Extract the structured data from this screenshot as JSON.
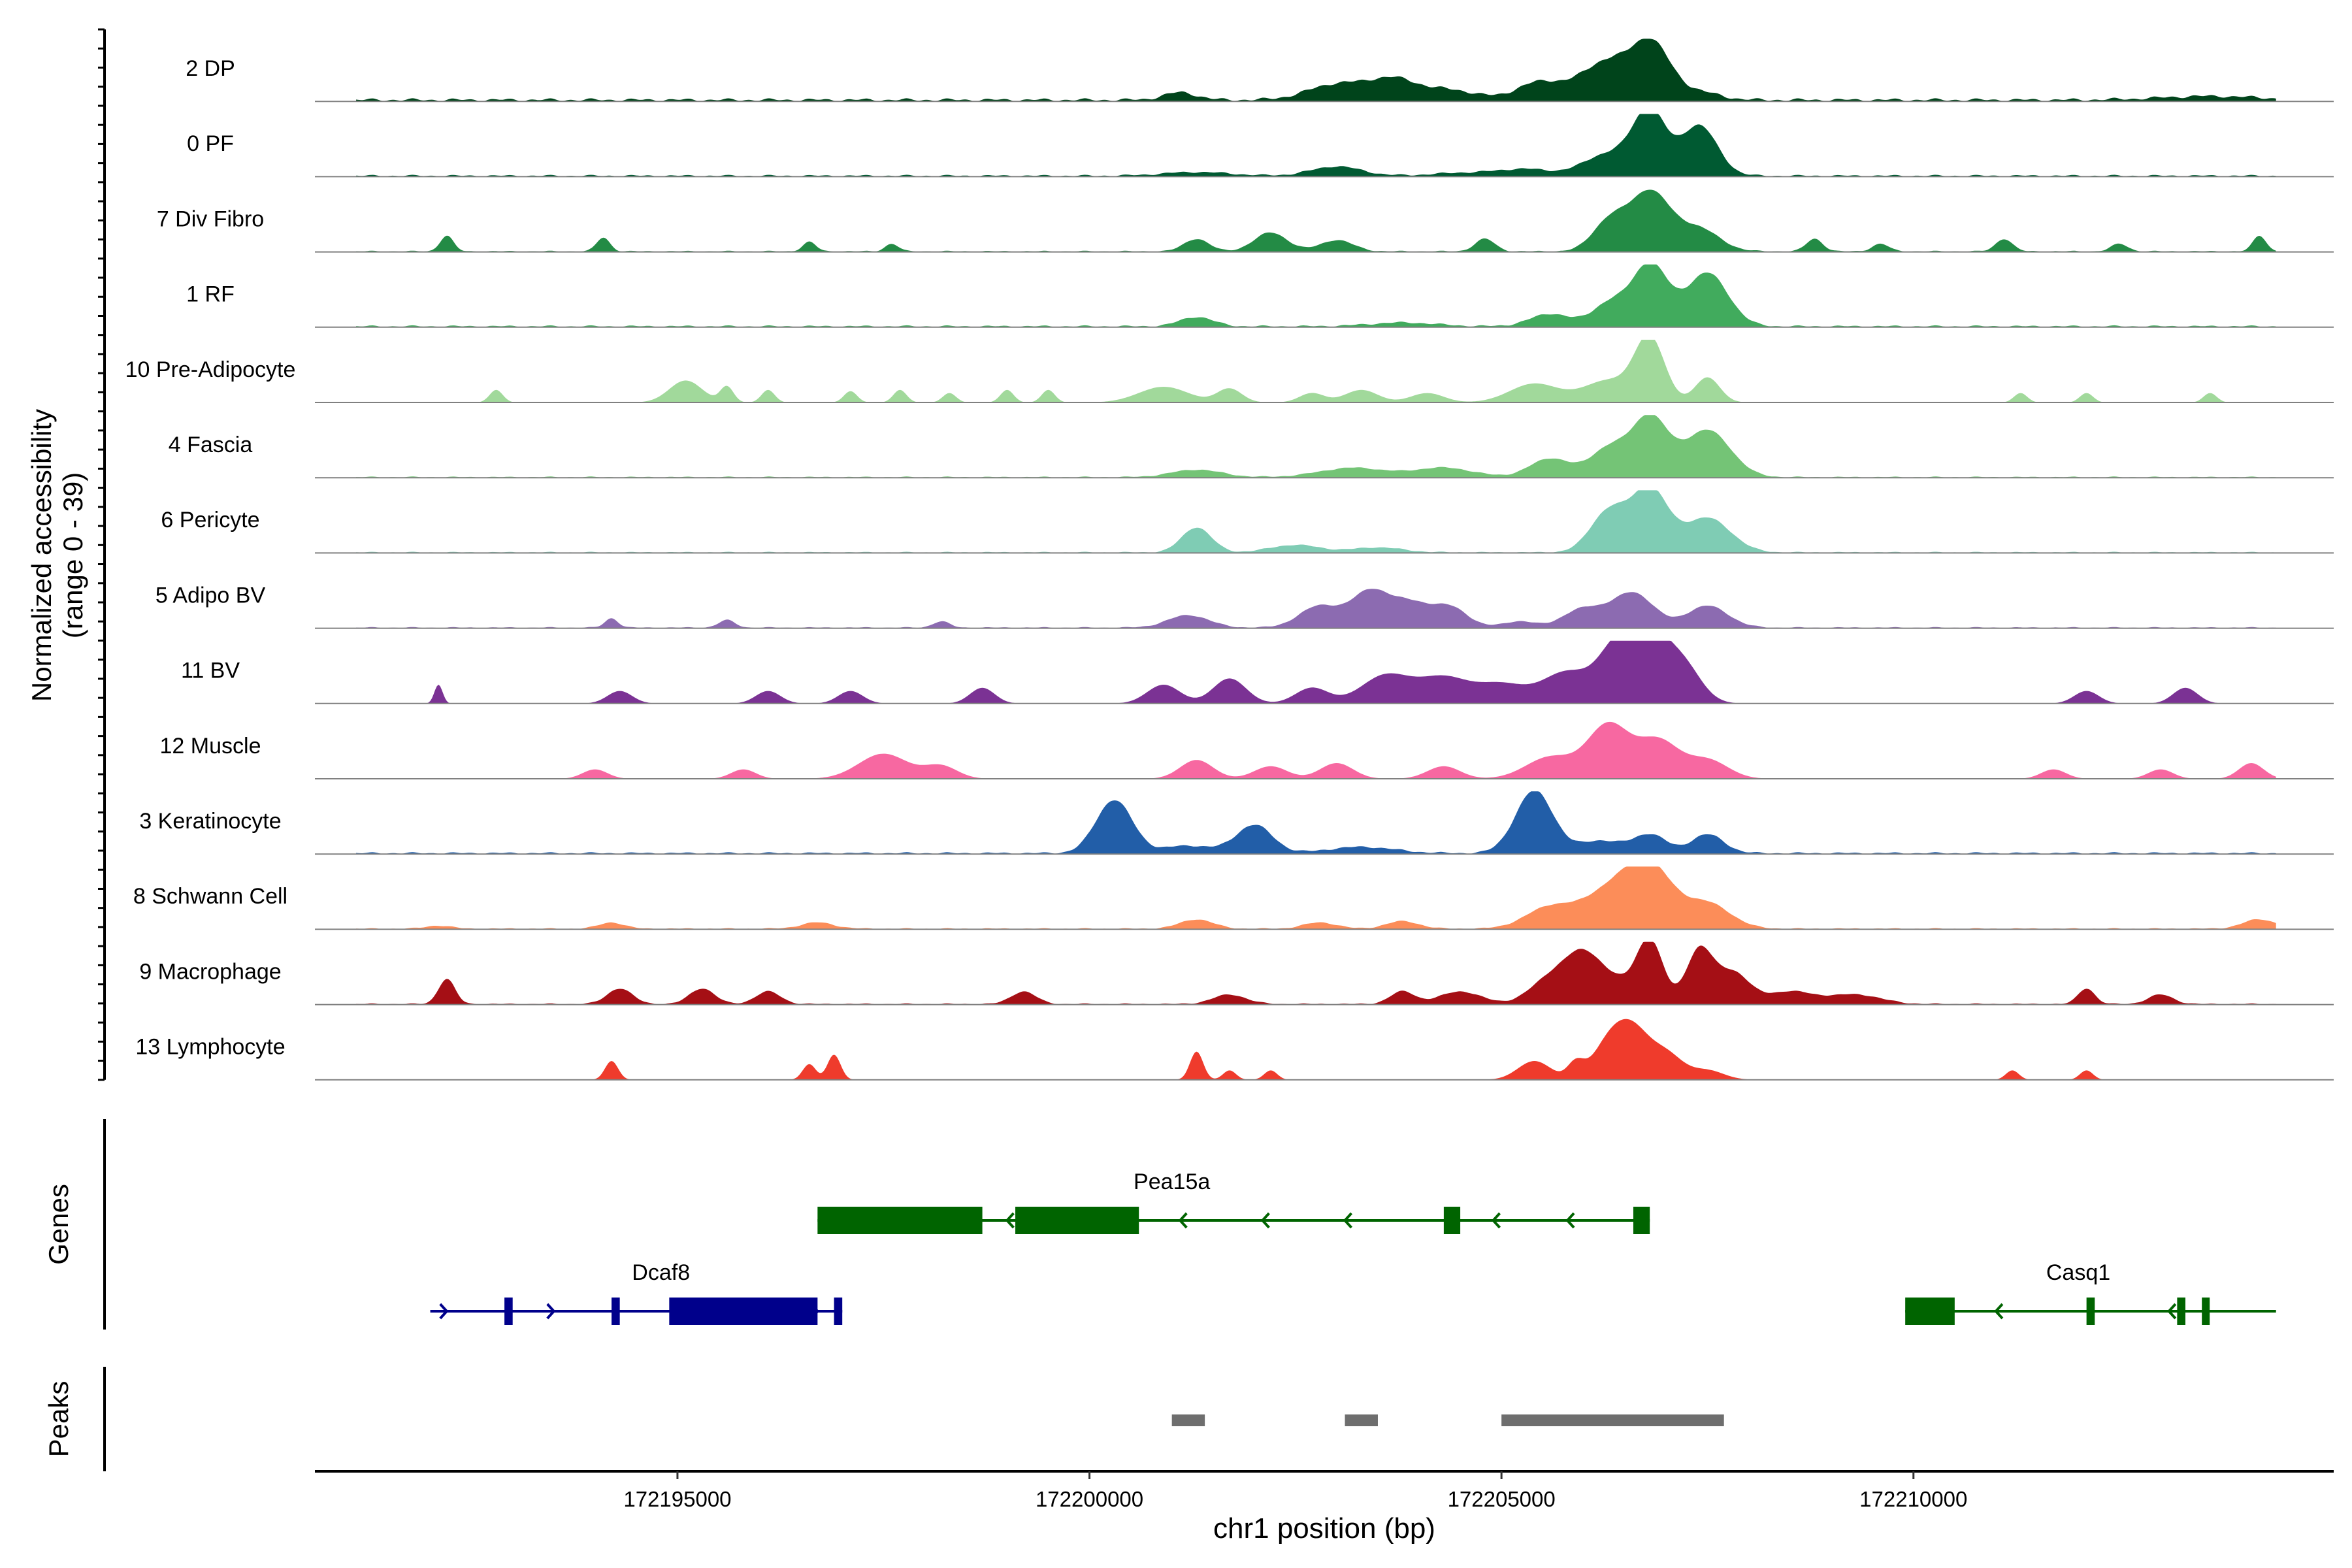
{
  "chart_data": {
    "type": "area",
    "title": "",
    "ylabel_line1": "Normalized accessibility",
    "ylabel_line2": "(range 0 - 39)",
    "y_range": [
      0,
      39
    ],
    "xlabel": "chr1 position (bp)",
    "xlim": [
      172190600,
      172215100
    ],
    "x_ticks": [
      172195000,
      172200000,
      172205000,
      172210000
    ],
    "x_tick_labels": [
      "172195000",
      "172200000",
      "172205000",
      "172210000"
    ],
    "track_range": [
      172191100,
      172214400
    ],
    "tracks": [
      {
        "label": "2 DP",
        "color": "#00441b",
        "peaks": [
          [
            172201100,
            0.12,
            200
          ],
          [
            172203000,
            0.25,
            350
          ],
          [
            172203700,
            0.32,
            300
          ],
          [
            172204400,
            0.15,
            300
          ],
          [
            172205500,
            0.3,
            300
          ],
          [
            172206000,
            0.18,
            200
          ],
          [
            172206300,
            0.5,
            220
          ],
          [
            172206800,
            0.95,
            240
          ],
          [
            172207400,
            0.12,
            250
          ],
          [
            172213600,
            0.06,
            600
          ]
        ],
        "base": 0.05
      },
      {
        "label": "0 PF",
        "color": "#005a32",
        "peaks": [
          [
            172201300,
            0.06,
            400
          ],
          [
            172203000,
            0.15,
            300
          ],
          [
            172205300,
            0.1,
            300
          ],
          [
            172206300,
            0.35,
            300
          ],
          [
            172206800,
            1.0,
            200
          ],
          [
            172207400,
            0.8,
            220
          ],
          [
            172204600,
            0.05,
            400
          ]
        ],
        "base": 0.03
      },
      {
        "label": "7 Div Fibro",
        "color": "#238b45",
        "peaks": [
          [
            172192200,
            0.25,
            80
          ],
          [
            172194100,
            0.22,
            80
          ],
          [
            172196600,
            0.15,
            80
          ],
          [
            172197600,
            0.12,
            80
          ],
          [
            172201300,
            0.2,
            150
          ],
          [
            172202200,
            0.3,
            200
          ],
          [
            172203000,
            0.18,
            200
          ],
          [
            172204800,
            0.2,
            120
          ],
          [
            172206300,
            0.45,
            200
          ],
          [
            172206800,
            0.95,
            250
          ],
          [
            172207400,
            0.35,
            250
          ],
          [
            172208800,
            0.2,
            100
          ],
          [
            172209600,
            0.12,
            100
          ],
          [
            172211100,
            0.2,
            100
          ],
          [
            172212500,
            0.12,
            100
          ],
          [
            172214200,
            0.25,
            80
          ]
        ],
        "base": 0.02
      },
      {
        "label": "1 RF",
        "color": "#41ab5d",
        "peaks": [
          [
            172201300,
            0.15,
            200
          ],
          [
            172203800,
            0.06,
            400
          ],
          [
            172205600,
            0.2,
            250
          ],
          [
            172206300,
            0.35,
            200
          ],
          [
            172206800,
            1.0,
            220
          ],
          [
            172207500,
            0.85,
            250
          ]
        ],
        "base": 0.03
      },
      {
        "label": "10 Pre-Adipocyte",
        "color": "#a1d99b",
        "peaks": [
          [
            172192800,
            0.2,
            80
          ],
          [
            172195100,
            0.35,
            200
          ],
          [
            172195600,
            0.25,
            80
          ],
          [
            172196100,
            0.2,
            80
          ],
          [
            172197100,
            0.18,
            80
          ],
          [
            172197700,
            0.2,
            80
          ],
          [
            172198300,
            0.15,
            80
          ],
          [
            172199000,
            0.2,
            80
          ],
          [
            172199500,
            0.2,
            80
          ],
          [
            172200900,
            0.25,
            300
          ],
          [
            172201700,
            0.22,
            150
          ],
          [
            172202700,
            0.15,
            150
          ],
          [
            172203300,
            0.2,
            200
          ],
          [
            172204100,
            0.15,
            200
          ],
          [
            172205400,
            0.3,
            300
          ],
          [
            172206300,
            0.35,
            300
          ],
          [
            172206800,
            1.0,
            180
          ],
          [
            172207500,
            0.4,
            150
          ],
          [
            172211300,
            0.15,
            80
          ],
          [
            172212100,
            0.15,
            80
          ],
          [
            172213600,
            0.15,
            80
          ]
        ],
        "base": 0.0
      },
      {
        "label": "4 Fascia",
        "color": "#74c476",
        "peaks": [
          [
            172201300,
            0.12,
            300
          ],
          [
            172203200,
            0.15,
            400
          ],
          [
            172204300,
            0.15,
            350
          ],
          [
            172205600,
            0.3,
            250
          ],
          [
            172206300,
            0.45,
            220
          ],
          [
            172206800,
            0.95,
            220
          ],
          [
            172207500,
            0.75,
            280
          ]
        ],
        "base": 0.02
      },
      {
        "label": "6 Pericyte",
        "color": "#7fccb4",
        "peaks": [
          [
            172201300,
            0.4,
            180
          ],
          [
            172202500,
            0.12,
            300
          ],
          [
            172203500,
            0.08,
            300
          ],
          [
            172206300,
            0.65,
            220
          ],
          [
            172206800,
            1.0,
            220
          ],
          [
            172207500,
            0.55,
            280
          ]
        ],
        "base": 0.02
      },
      {
        "label": "5 Adipo BV",
        "color": "#8c6bb1",
        "peaks": [
          [
            172194200,
            0.15,
            80
          ],
          [
            172195600,
            0.12,
            100
          ],
          [
            172198200,
            0.1,
            100
          ],
          [
            172201200,
            0.2,
            250
          ],
          [
            172202800,
            0.35,
            250
          ],
          [
            172203400,
            0.55,
            220
          ],
          [
            172203900,
            0.4,
            250
          ],
          [
            172204400,
            0.3,
            200
          ],
          [
            172205200,
            0.1,
            200
          ],
          [
            172206000,
            0.3,
            250
          ],
          [
            172206600,
            0.55,
            250
          ],
          [
            172207500,
            0.35,
            250
          ]
        ],
        "base": 0.02
      },
      {
        "label": "11 BV",
        "color": "#7b3294",
        "peaks": [
          [
            172192100,
            0.3,
            50
          ],
          [
            172194300,
            0.2,
            150
          ],
          [
            172196100,
            0.2,
            150
          ],
          [
            172197100,
            0.2,
            150
          ],
          [
            172198700,
            0.25,
            150
          ],
          [
            172200900,
            0.3,
            200
          ],
          [
            172201700,
            0.4,
            200
          ],
          [
            172202700,
            0.25,
            200
          ],
          [
            172203600,
            0.45,
            300
          ],
          [
            172204300,
            0.4,
            300
          ],
          [
            172205000,
            0.3,
            300
          ],
          [
            172205800,
            0.5,
            300
          ],
          [
            172206400,
            0.85,
            220
          ],
          [
            172206800,
            1.0,
            220
          ],
          [
            172207200,
            0.6,
            220
          ],
          [
            172212100,
            0.2,
            150
          ],
          [
            172213300,
            0.25,
            150
          ]
        ],
        "base": 0.0
      },
      {
        "label": "12 Muscle",
        "color": "#f768a1",
        "peaks": [
          [
            172194000,
            0.15,
            150
          ],
          [
            172195800,
            0.15,
            150
          ],
          [
            172197500,
            0.4,
            300
          ],
          [
            172198200,
            0.2,
            200
          ],
          [
            172201300,
            0.3,
            200
          ],
          [
            172202200,
            0.2,
            200
          ],
          [
            172203000,
            0.25,
            200
          ],
          [
            172204300,
            0.2,
            200
          ],
          [
            172205600,
            0.35,
            300
          ],
          [
            172206300,
            0.85,
            250
          ],
          [
            172206900,
            0.6,
            250
          ],
          [
            172207500,
            0.3,
            250
          ],
          [
            172211700,
            0.15,
            150
          ],
          [
            172213000,
            0.15,
            150
          ],
          [
            172214100,
            0.25,
            150
          ]
        ],
        "base": 0.0
      },
      {
        "label": "3 Keratinocyte",
        "color": "#225ea8",
        "peaks": [
          [
            172200300,
            0.85,
            220
          ],
          [
            172201200,
            0.12,
            300
          ],
          [
            172202000,
            0.45,
            220
          ],
          [
            172205400,
            1.0,
            230
          ],
          [
            172206200,
            0.2,
            250
          ],
          [
            172206800,
            0.3,
            200
          ],
          [
            172207500,
            0.3,
            200
          ],
          [
            172203300,
            0.1,
            400
          ]
        ],
        "base": 0.03
      },
      {
        "label": "8 Schwann Cell",
        "color": "#fc8d59",
        "peaks": [
          [
            172192100,
            0.05,
            150
          ],
          [
            172194200,
            0.1,
            150
          ],
          [
            172196700,
            0.1,
            200
          ],
          [
            172201300,
            0.15,
            200
          ],
          [
            172202800,
            0.1,
            200
          ],
          [
            172203800,
            0.12,
            200
          ],
          [
            172205600,
            0.35,
            300
          ],
          [
            172206300,
            0.55,
            300
          ],
          [
            172206800,
            0.95,
            280
          ],
          [
            172207500,
            0.4,
            280
          ],
          [
            172214200,
            0.15,
            200
          ]
        ],
        "base": 0.02
      },
      {
        "label": "9 Macrophage",
        "color": "#a50f15",
        "peaks": [
          [
            172192200,
            0.4,
            100
          ],
          [
            172194300,
            0.25,
            150
          ],
          [
            172195300,
            0.25,
            150
          ],
          [
            172196100,
            0.2,
            150
          ],
          [
            172199200,
            0.2,
            150
          ],
          [
            172201700,
            0.15,
            200
          ],
          [
            172203800,
            0.2,
            150
          ],
          [
            172204500,
            0.2,
            250
          ],
          [
            172205600,
            0.4,
            250
          ],
          [
            172206000,
            0.7,
            220
          ],
          [
            172206400,
            0.3,
            220
          ],
          [
            172206800,
            1.0,
            160
          ],
          [
            172207400,
            0.85,
            160
          ],
          [
            172207800,
            0.5,
            200
          ],
          [
            172208500,
            0.2,
            300
          ],
          [
            172209300,
            0.15,
            300
          ],
          [
            172212100,
            0.25,
            100
          ],
          [
            172213000,
            0.15,
            150
          ]
        ],
        "base": 0.02
      },
      {
        "label": "13 Lymphocyte",
        "color": "#ef3b2c",
        "peaks": [
          [
            172194200,
            0.3,
            80
          ],
          [
            172196600,
            0.25,
            80
          ],
          [
            172196900,
            0.4,
            80
          ],
          [
            172201300,
            0.45,
            80
          ],
          [
            172201700,
            0.15,
            80
          ],
          [
            172202200,
            0.15,
            80
          ],
          [
            172205400,
            0.3,
            200
          ],
          [
            172205900,
            0.25,
            100
          ],
          [
            172206300,
            0.55,
            200
          ],
          [
            172206600,
            0.7,
            200
          ],
          [
            172207000,
            0.4,
            200
          ],
          [
            172207500,
            0.15,
            200
          ],
          [
            172211200,
            0.15,
            80
          ],
          [
            172212100,
            0.15,
            80
          ]
        ],
        "base": 0.0
      }
    ],
    "genes": [
      {
        "name": "Pea15a",
        "strand": "-",
        "color": "#006400",
        "row": 1,
        "label_pos": 172201000,
        "span": [
          172196700,
          172206800
        ],
        "exons": [
          [
            172196700,
            172198700
          ],
          [
            172199100,
            172200600
          ],
          [
            172204300,
            172204500
          ],
          [
            172206600,
            172206800
          ]
        ],
        "arrows": [
          172199000,
          172201100,
          172202100,
          172203100,
          172204900,
          172205800
        ]
      },
      {
        "name": "Dcaf8",
        "strand": "+",
        "color": "#00008b",
        "row": 2,
        "label_pos": 172194800,
        "span": [
          172192000,
          172197000
        ],
        "exons": [
          [
            172192900,
            172193000
          ],
          [
            172194200,
            172194300
          ],
          [
            172194900,
            172196700
          ],
          [
            172196900,
            172197000
          ]
        ],
        "arrows": [
          172192200,
          172193500,
          172196700
        ]
      },
      {
        "name": "Casq1",
        "strand": "-",
        "color": "#006400",
        "row": 2,
        "label_pos": 172212000,
        "span": [
          172209900,
          172214400
        ],
        "exons": [
          [
            172209900,
            172210500
          ],
          [
            172212100,
            172212200
          ],
          [
            172213200,
            172213300
          ],
          [
            172213500,
            172213550
          ]
        ],
        "arrows": [
          172211000,
          172213100
        ]
      }
    ],
    "peaks_track": [
      [
        172201000,
        172201400
      ],
      [
        172203100,
        172203500
      ],
      [
        172205000,
        172207700
      ]
    ],
    "panel_labels": {
      "genes": "Genes",
      "peaks": "Peaks"
    }
  }
}
